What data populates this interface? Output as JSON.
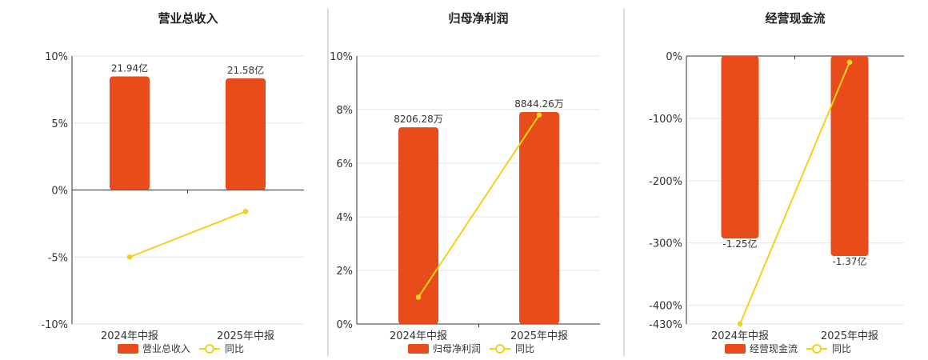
{
  "colors": {
    "bar": "#e84c1a",
    "line": "#f2d21a",
    "axis": "#333333",
    "grid": "#e6e6e6"
  },
  "chart_data": [
    {
      "type": "bar",
      "title": "营业总收入",
      "categories": [
        "2024年中报",
        "2025年中报"
      ],
      "bar_series": {
        "name": "营业总收入",
        "values": [
          21.94,
          21.58
        ],
        "labels": [
          "21.94亿",
          "21.58亿"
        ]
      },
      "line_series": {
        "name": "同比",
        "values": [
          -5.0,
          -1.6
        ]
      },
      "ylim": [
        -10,
        10
      ],
      "yticks": [
        10,
        5,
        0,
        -5,
        -10
      ],
      "ytick_labels": [
        "10%",
        "5%",
        "0%",
        "-5%",
        "-10%"
      ],
      "legend": {
        "position": "bottom-center",
        "bar_label": "营业总收入",
        "line_label": "同比"
      }
    },
    {
      "type": "bar",
      "title": "归母净利润",
      "categories": [
        "2024年中报",
        "2025年中报"
      ],
      "bar_series": {
        "name": "归母净利润",
        "values": [
          8206.28,
          8844.26
        ],
        "labels": [
          "8206.28万",
          "8844.26万"
        ]
      },
      "line_series": {
        "name": "同比",
        "values": [
          1.0,
          7.8
        ]
      },
      "ylim": [
        0,
        10
      ],
      "yticks": [
        10,
        8,
        6,
        4,
        2,
        0
      ],
      "ytick_labels": [
        "10%",
        "8%",
        "6%",
        "4%",
        "2%",
        "0%"
      ],
      "legend": {
        "position": "bottom-center",
        "bar_label": "归母净利润",
        "line_label": "同比"
      }
    },
    {
      "type": "bar",
      "title": "经营现金流",
      "categories": [
        "2024年中报",
        "2025年中报"
      ],
      "bar_series": {
        "name": "经营现金流",
        "values": [
          -1.25,
          -1.37
        ],
        "labels": [
          "-1.25亿",
          "-1.37亿"
        ]
      },
      "line_series": {
        "name": "同比",
        "values": [
          -430,
          -10
        ]
      },
      "ylim": [
        -430,
        0
      ],
      "yticks": [
        0,
        -100,
        -200,
        -300,
        -400,
        -430
      ],
      "ytick_labels": [
        "0%",
        "-100%",
        "-200%",
        "-300%",
        "-400%",
        "-430%"
      ],
      "legend": {
        "position": "bottom-center",
        "bar_label": "经营现金流",
        "line_label": "同比"
      }
    }
  ]
}
